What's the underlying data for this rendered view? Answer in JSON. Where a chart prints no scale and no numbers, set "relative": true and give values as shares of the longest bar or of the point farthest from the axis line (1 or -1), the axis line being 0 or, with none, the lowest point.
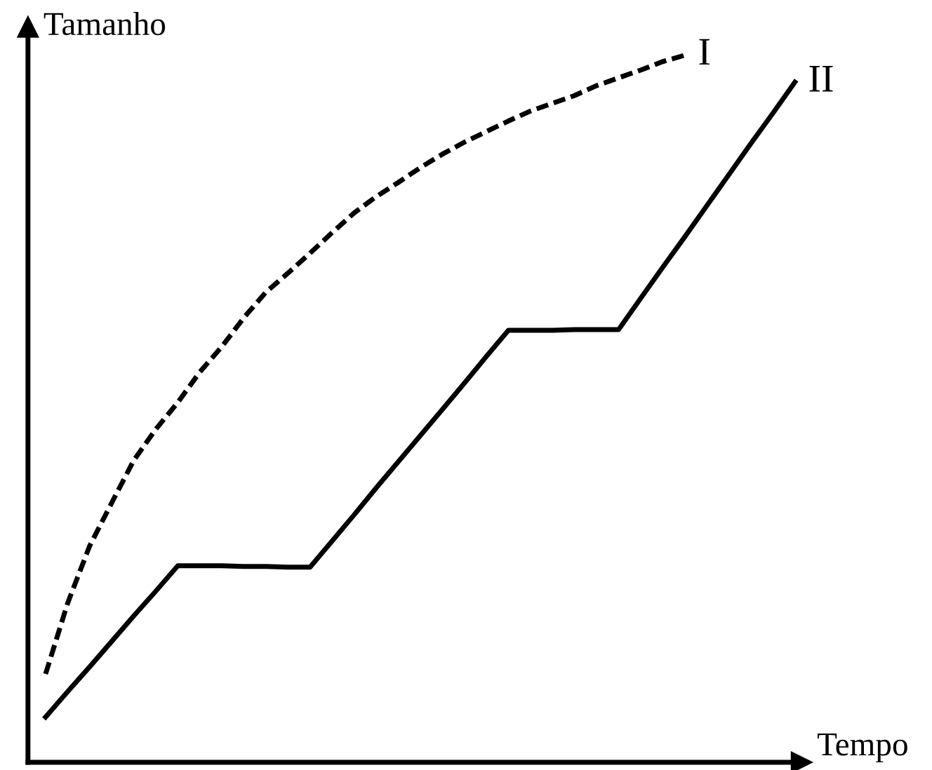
{
  "chart_data": {
    "type": "line",
    "relative": true,
    "xlabel": "Tempo",
    "ylabel": "Tamanho",
    "categories": [
      null,
      null,
      null,
      null,
      null,
      null,
      null,
      null,
      null,
      null,
      null,
      null,
      null,
      null,
      null,
      null,
      null,
      null,
      null,
      null,
      null,
      null,
      null,
      null,
      null,
      null,
      null,
      null,
      null,
      null,
      null,
      null,
      null,
      null,
      null
    ],
    "series": [
      {
        "name": "I",
        "color": "#000000",
        "line_style": "dashed",
        "values": [
          0.125,
          0.225,
          0.306,
          0.367,
          0.427,
          0.471,
          0.509,
          0.552,
          0.588,
          0.629,
          0.665,
          0.692,
          0.72,
          0.749,
          0.777,
          0.8,
          0.82,
          0.841,
          0.86,
          0.877,
          0.892,
          0.907,
          0.921,
          0.932,
          0.943,
          0.957,
          0.968,
          0.979,
          0.991,
          1.0,
          null,
          null,
          null,
          null,
          null
        ]
      },
      {
        "name": "II",
        "color": "#000000",
        "line_style": "solid",
        "values": [
          0.064,
          0.1,
          0.135,
          0.171,
          0.207,
          0.242,
          0.278,
          0.278,
          0.278,
          0.277,
          0.277,
          0.276,
          0.276,
          0.313,
          0.35,
          0.388,
          0.425,
          0.462,
          0.499,
          0.536,
          0.574,
          0.611,
          0.611,
          0.611,
          0.612,
          0.612,
          0.612,
          0.656,
          0.7,
          0.743,
          0.787,
          0.831,
          0.875,
          0.918,
          0.962
        ]
      }
    ]
  }
}
